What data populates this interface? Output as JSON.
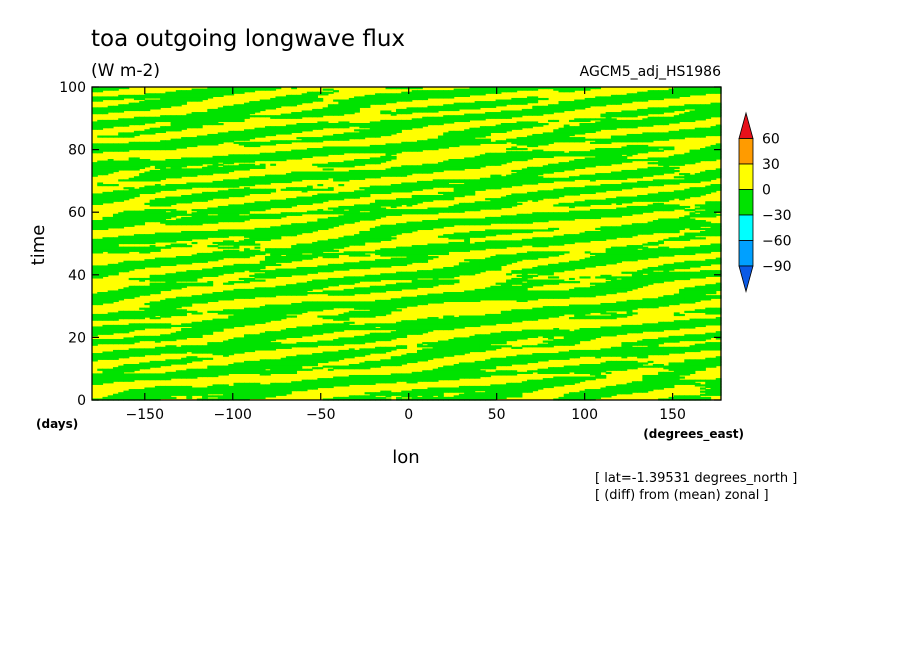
{
  "chart_data": {
    "type": "heatmap",
    "title": "toa outgoing longwave flux",
    "units": "(W m-2)",
    "experiment": "AGCM5_adj_HS1986",
    "xlabel": "lon",
    "x_units": "(degrees_east)",
    "ylabel": "time",
    "y_units": "(days)",
    "xlim": [
      -180,
      177.5
    ],
    "ylim": [
      0,
      100
    ],
    "x_ticks": [
      -150,
      -100,
      -50,
      0,
      50,
      100,
      150
    ],
    "y_ticks": [
      0,
      20,
      40,
      60,
      80,
      100
    ],
    "annotations": [
      "[ lat=-1.39531 degrees_north ]",
      "[ (diff) from (mean) zonal ]"
    ],
    "colorbar": {
      "levels": [
        60,
        30,
        0,
        -30,
        -60,
        -90
      ],
      "bins": [
        {
          "range": "> 60",
          "color": "#e8101a"
        },
        {
          "range": "30 to 60",
          "color": "#ff9b00"
        },
        {
          "range": "0 to 30",
          "color": "#ffff00"
        },
        {
          "range": "-30 to 0",
          "color": "#00e300"
        },
        {
          "range": "-60 to -30",
          "color": "#00ffff"
        },
        {
          "range": "-90 to -60",
          "color": "#00a0ff"
        },
        {
          "range": "< -90",
          "color": "#0a5ae6"
        }
      ]
    },
    "field_colors": {
      "positive": "#ffff00",
      "negative": "#00e300"
    }
  }
}
